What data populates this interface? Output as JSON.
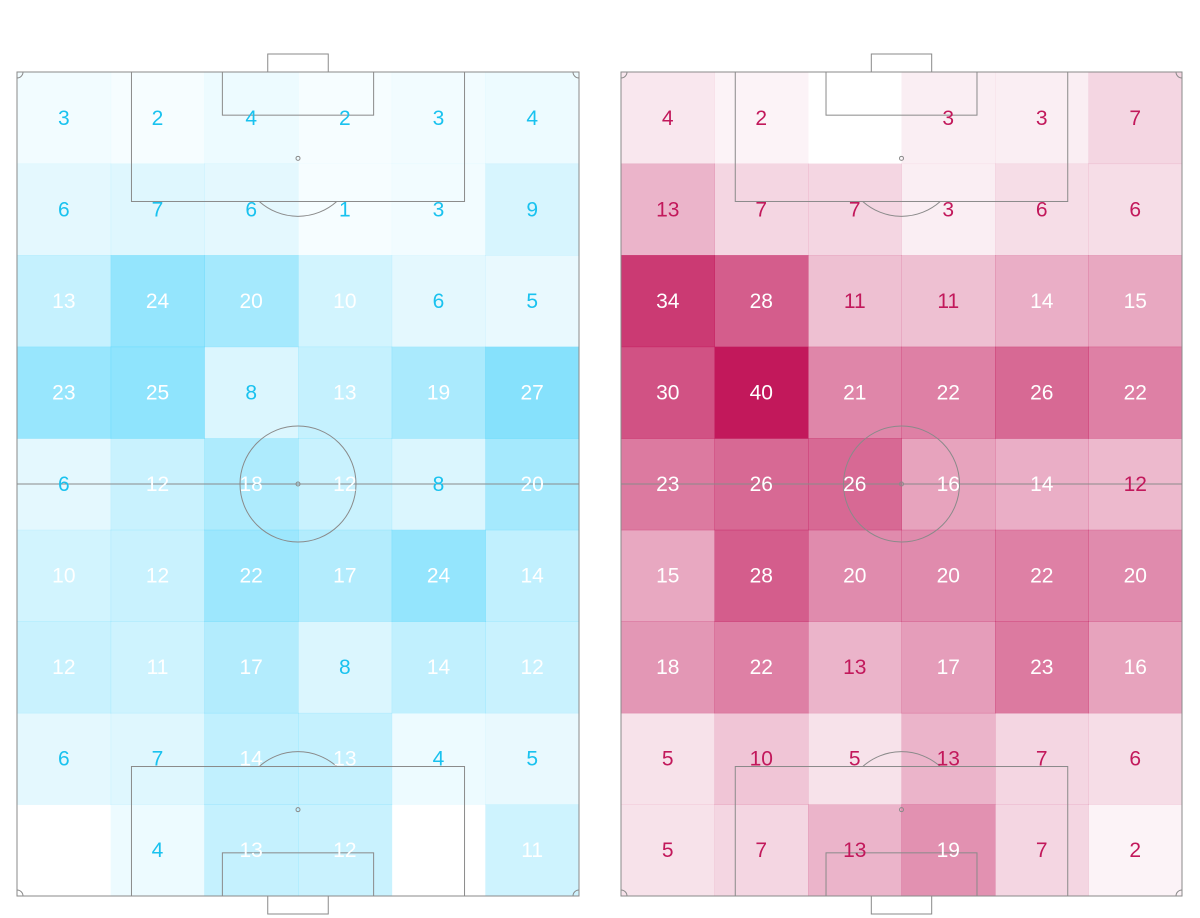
{
  "chart_data": [
    {
      "type": "heatmap",
      "grid": {
        "rows": 9,
        "cols": 6
      },
      "scale": {
        "min": 0,
        "max": 40
      },
      "colors": {
        "base": "#4cd3fb",
        "text_dark": "#19c2ef",
        "text_light": "#ffffff"
      },
      "light_text_threshold": 9,
      "values": [
        [
          3,
          2,
          4,
          2,
          3,
          4
        ],
        [
          6,
          7,
          6,
          1,
          3,
          9
        ],
        [
          13,
          24,
          20,
          10,
          6,
          5
        ],
        [
          23,
          25,
          8,
          13,
          19,
          27
        ],
        [
          6,
          12,
          18,
          12,
          8,
          20
        ],
        [
          10,
          12,
          22,
          17,
          24,
          14
        ],
        [
          12,
          11,
          17,
          8,
          14,
          12
        ],
        [
          6,
          7,
          14,
          13,
          4,
          5
        ],
        [
          null,
          4,
          13,
          12,
          null,
          11
        ]
      ]
    },
    {
      "type": "heatmap",
      "grid": {
        "rows": 9,
        "cols": 6
      },
      "scale": {
        "min": 0,
        "max": 40
      },
      "colors": {
        "base": "#c2185b",
        "text_dark": "#c2185b",
        "text_light": "#ffffff"
      },
      "light_text_threshold": 13,
      "values": [
        [
          4,
          2,
          null,
          3,
          3,
          7
        ],
        [
          13,
          7,
          7,
          3,
          6,
          6
        ],
        [
          34,
          28,
          11,
          11,
          14,
          15
        ],
        [
          30,
          40,
          21,
          22,
          26,
          22
        ],
        [
          23,
          26,
          26,
          16,
          14,
          12
        ],
        [
          15,
          28,
          20,
          20,
          22,
          20
        ],
        [
          18,
          22,
          13,
          17,
          23,
          16
        ],
        [
          5,
          10,
          5,
          13,
          7,
          6
        ],
        [
          5,
          7,
          13,
          19,
          7,
          2
        ]
      ]
    }
  ]
}
